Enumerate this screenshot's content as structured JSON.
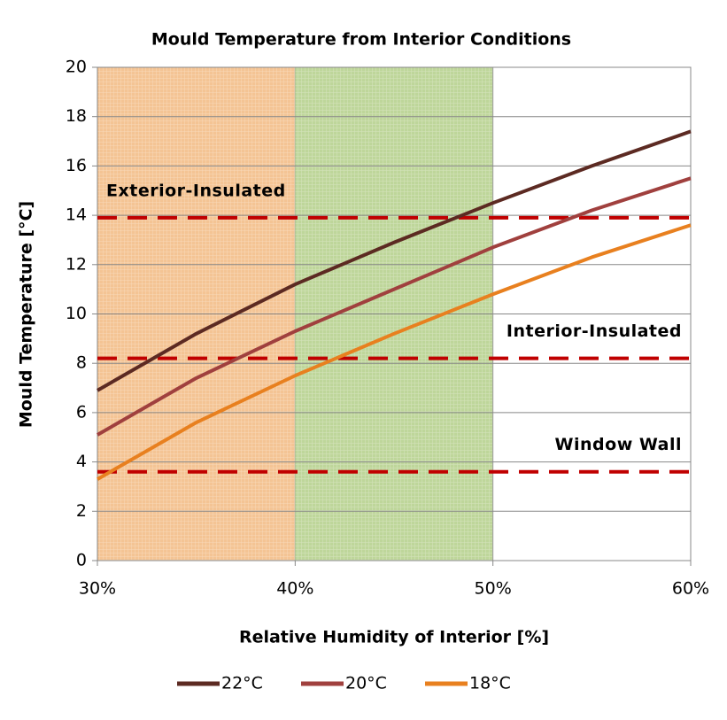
{
  "chart_data": {
    "type": "line",
    "title": "Mould Temperature from Interior Conditions",
    "x_label": "Relative Humidity of Interior [%]",
    "y_label": "Mould Temperature [°C]",
    "x": [
      30,
      35,
      40,
      45,
      50,
      55,
      60
    ],
    "series": [
      {
        "name": "22°C",
        "color": "#5c2a22",
        "values": [
          6.9,
          9.2,
          11.2,
          12.9,
          14.5,
          16.0,
          17.4
        ]
      },
      {
        "name": "20°C",
        "color": "#a0403e",
        "values": [
          5.1,
          7.4,
          9.3,
          11.0,
          12.7,
          14.2,
          15.5
        ]
      },
      {
        "name": "18°C",
        "color": "#e8801f",
        "values": [
          3.3,
          5.6,
          7.5,
          9.2,
          10.8,
          12.3,
          13.6
        ]
      }
    ],
    "thresholds": [
      {
        "label": "Exterior-Insulated",
        "value": 13.9
      },
      {
        "label": "Interior-Insulated",
        "value": 8.2
      },
      {
        "label": "Window Wall",
        "value": 3.6
      }
    ],
    "threshold_color": "#c00000",
    "bands": [
      {
        "from": 30,
        "to": 40,
        "color": "#f0b070"
      },
      {
        "from": 40,
        "to": 50,
        "color": "#a8c878"
      }
    ],
    "xlim": [
      30,
      60
    ],
    "xticks": [
      {
        "value": 30,
        "label": "30%"
      },
      {
        "value": 40,
        "label": "40%"
      },
      {
        "value": 50,
        "label": "50%"
      },
      {
        "value": 60,
        "label": "60%"
      }
    ],
    "ylim": [
      0,
      20
    ],
    "yticks": [
      0,
      2,
      4,
      6,
      8,
      10,
      12,
      14,
      16,
      18,
      20
    ],
    "grid": true,
    "legend": "bottom"
  }
}
